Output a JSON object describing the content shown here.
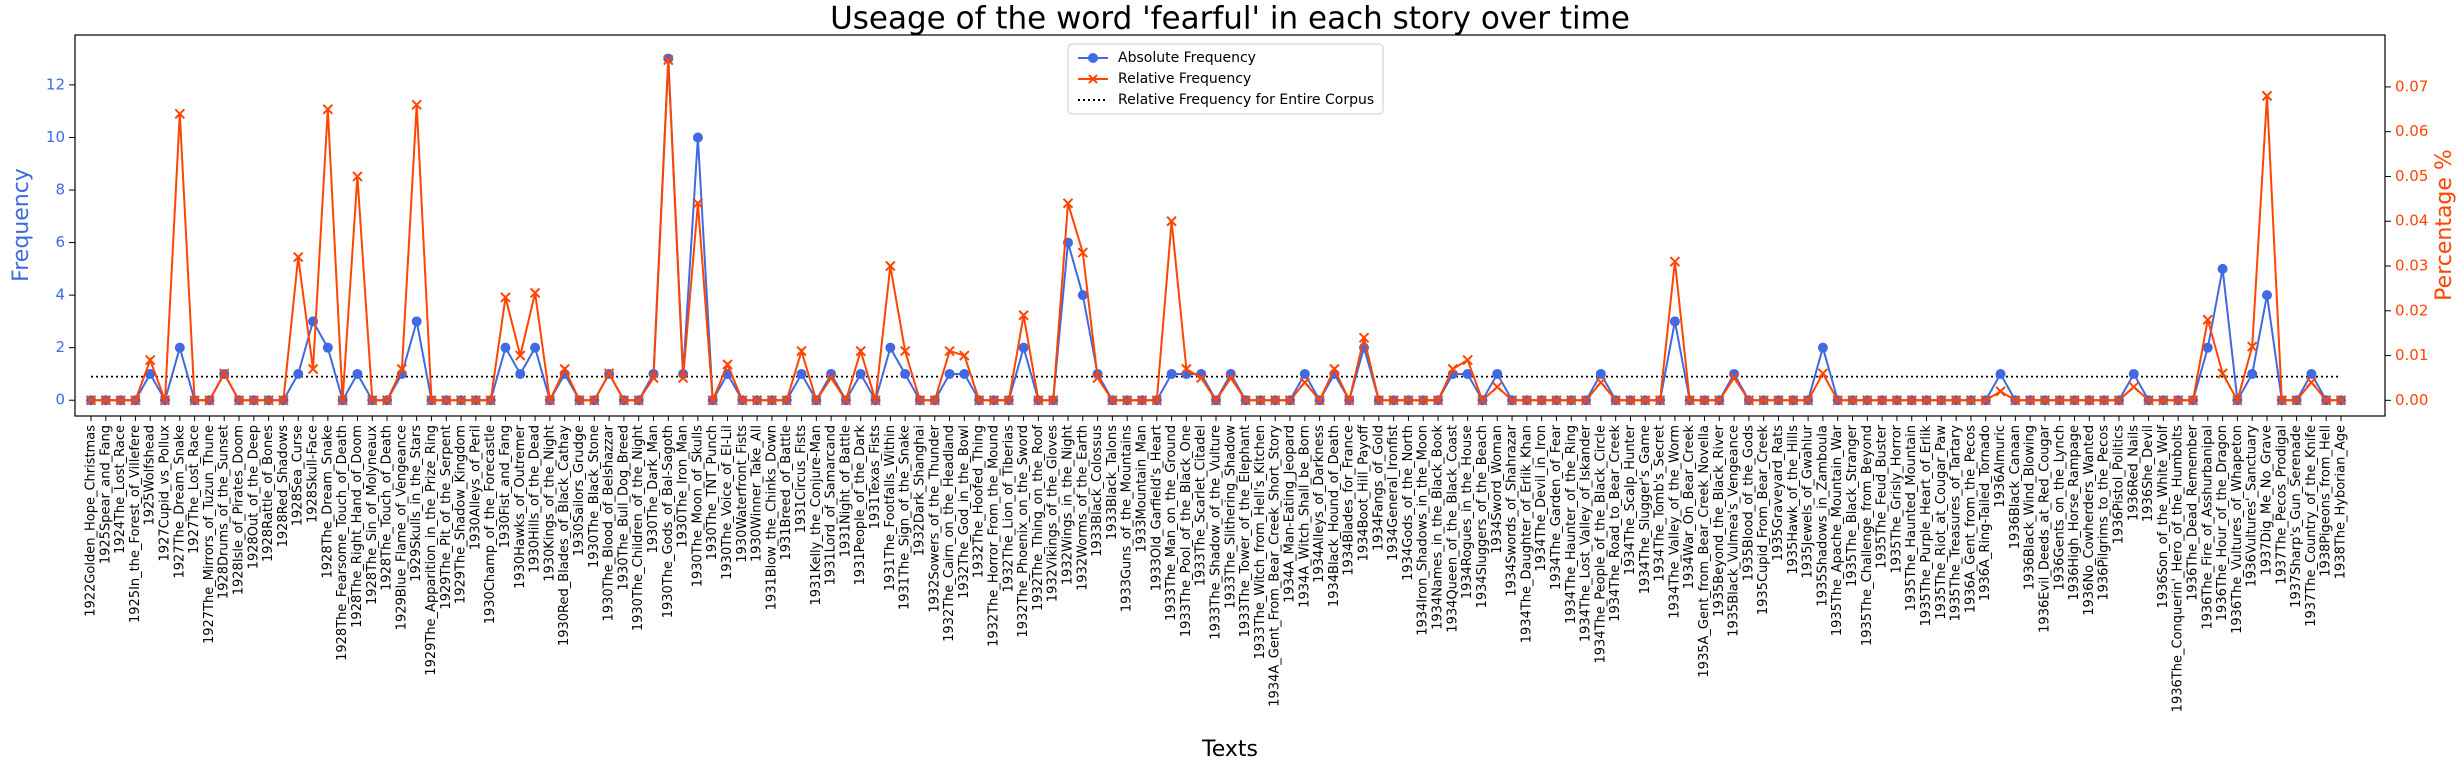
{
  "chart_data": {
    "type": "line",
    "title": "Useage of the word 'fearful' in each story over time",
    "xlabel": "Texts",
    "ylabel": "Frequency",
    "y2label": "Percentage %",
    "categories": [
      "1922Golden_Hope_Christmas",
      "1925Spear_and_Fang",
      "1924The_Lost_Race",
      "1925In_the_Forest_of_Villefere",
      "1925Wolfshead",
      "1927Cupid_vs_Pollux",
      "1927The_Dream_Snake",
      "1927The_Lost_Race",
      "1927The_Mirrors_of_Tuzun_Thune",
      "1928Drums_of_the_Sunset",
      "1928Isle_of_Pirates_Doom",
      "1928Out_of_the_Deep",
      "1928Rattle_of_Bones",
      "1928Red_Shadows",
      "1928Sea_Curse",
      "1928Skull-Face",
      "1928The_Dream_Snake",
      "1928The_Fearsome_Touch_of_Death",
      "1928The_Right_Hand_of_Doom",
      "1928The_Sin_of_Molyneaux",
      "1928The_Touch_of_Death",
      "1929Blue_Flame_of_Vengeance",
      "1929Skulls_in_the_Stars",
      "1929The_Apparition_in_the_Prize_Ring",
      "1929The_Pit_of_the_Serpent",
      "1929The_Shadow_Kingdom",
      "1930Alleys_of_Peril",
      "1930Champ_of_the_Forecastle",
      "1930Fist_and_Fang",
      "1930Hawks_of_Outremer",
      "1930Hills_of_the_Dead",
      "1930Kings_of_the_Night",
      "1930Red_Blades_of_Black_Cathay",
      "1930Sailors_Grudge",
      "1930The_Black_Stone",
      "1930The_Blood_of_Belshazzar",
      "1930The_Bull_Dog_Breed",
      "1930The_Children_of_the_Night",
      "1930The_Dark_Man",
      "1930The_Gods_of_Bal-Sagoth",
      "1930The_Iron_Man",
      "1930The_Moon_of_Skulls",
      "1930The_TNT_Punch",
      "1930The_Voice_of_El-Lil",
      "1930Waterfront_Fists",
      "1930Winner_Take_All",
      "1931Blow_the_Chinks_Down",
      "1931Breed_of_Battle",
      "1931Circus_Fists",
      "1931Kelly_the_Conjure-Man",
      "1931Lord_of_Samarcand",
      "1931Night_of_Battle",
      "1931People_of_the_Dark",
      "1931Texas_Fists",
      "1931The_Footfalls_Within",
      "1931The_Sign_of_the_Snake",
      "1932Dark_Shanghai",
      "1932Sowers_of_the_Thunder",
      "1932The_Cairn_on_the_Headland",
      "1932The_God_in_the_Bowl",
      "1932The_Hoofed_Thing",
      "1932The_Horror_From_the_Mound",
      "1932The_Lion_of_Tiberias",
      "1932The_Phoenix_on_the_Sword",
      "1932The_Thing_on_the_Roof",
      "1932Vikings_of_the_Gloves",
      "1932Wings_in_the_Night",
      "1932Worms_of_the_Earth",
      "1933Black_Colossus",
      "1933Black_Talons",
      "1933Guns_of_the_Mountains",
      "1933Mountain_Man",
      "1933Old_Garfield's_Heart",
      "1933The_Man_on_the_Ground",
      "1933The_Pool_of_the_Black_One",
      "1933The_Scarlet_Citadel",
      "1933The_Shadow_of_the_Vulture",
      "1933The_Slithering_Shadow",
      "1933The_Tower_of_the_Elephant",
      "1933The_Witch_from_Hell's_Kitchen",
      "1934A_Gent_From_Bear_Creek_Short_Story",
      "1934A_Man-Eating_Jeopard",
      "1934A_Witch_Shall_be_Born",
      "1934Alleys_of_Darkness",
      "1934Black_Hound_of_Death",
      "1934Blades_for_France",
      "1934Boot_Hill_Payoff",
      "1934Fangs_of_Gold",
      "1934General_Ironfist",
      "1934Gods_of_the_North",
      "1934Iron_Shadows_in_the_Moon",
      "1934Names_in_the_Black_Book",
      "1934Queen_of_the_Black_Coast",
      "1934Rogues_in_the_House",
      "1934Sluggers_of_the_Beach",
      "1934Sword_Woman",
      "1934Swords_of_Shahrazar",
      "1934The_Daughter_of_Erlik_Khan",
      "1934The_Devil_in_Iron",
      "1934The_Garden_of_Fear",
      "1934The_Haunter_of_the_Ring",
      "1934The_Lost_Valley_of_Iskander",
      "1934The_People_of_the_Black_Circle",
      "1934The_Road_to_Bear_Creek",
      "1934The_Scalp_Hunter",
      "1934The_Slugger's_Game",
      "1934The_Tomb's_Secret",
      "1934The_Valley_of_the_Worm",
      "1934War_On_Bear_Creek",
      "1935A_Gent_from_Bear_Creek_Novella",
      "1935Beyond_the_Black_River",
      "1935Black_Vulmea's_Vengeance",
      "1935Blood_of_the_Gods",
      "1935Cupid_From_Bear_Creek",
      "1935Graveyard_Rats",
      "1935Hawk_of_the_Hills",
      "1935Jewels_of_Gwahlur",
      "1935Shadows_in_Zamboula",
      "1935The_Apache_Mountain_War",
      "1935The_Black_Stranger",
      "1935The_Challenge_from_Beyond",
      "1935The_Feud_Buster",
      "1935The_Grisly_Horror",
      "1935The_Haunted_Mountain",
      "1935The_Purple_Heart_of_Erlik",
      "1935The_Riot_at_Cougar_Paw",
      "1935The_Treasures_of_Tartary",
      "1936A_Gent_from_the_Pecos",
      "1936A_Ring-Tailed_Tornado",
      "1936Almuric",
      "1936Black_Canaan",
      "1936Black_Wind_Blowing",
      "1936Evil_Deeds_at_Red_Cougar",
      "1936Gents_on_the_Lynch",
      "1936High_Horse_Rampage",
      "1936No_Cowherders_Wanted",
      "1936Pilgrims_to_the_Pecos",
      "1936Pistol_Politics",
      "1936Red_Nails",
      "1936She_Devil",
      "1936Son_of_the_White_Wolf",
      "1936The_Conquerin'_Hero_of_the_Humbolts",
      "1936The_Dead_Remember",
      "1936The_Fire_of_Asshurbanipal",
      "1936The_Hour_of_the_Dragon",
      "1936The_Vultures_of_Whapeton",
      "1936Vultures'_Sanctuary",
      "1937Dig_Me_No_Grave",
      "1937The_Pecos_Prodigal",
      "1937Sharp's_Gun_Serenade",
      "1937The_Country_of_the_Knife",
      "1938Pigeons_from_Hell",
      "1938The_Hyborian_Age"
    ],
    "series": [
      {
        "name": "Absolute Frequency",
        "color": "#4169e1",
        "marker": "o",
        "axis": "y",
        "values": [
          0,
          0,
          0,
          0,
          1,
          0,
          2,
          0,
          0,
          1,
          0,
          0,
          0,
          0,
          1,
          3,
          2,
          0,
          1,
          0,
          0,
          1,
          3,
          0,
          0,
          0,
          0,
          0,
          2,
          1,
          2,
          0,
          1,
          0,
          0,
          1,
          0,
          0,
          1,
          13,
          1,
          10,
          0,
          1,
          0,
          0,
          0,
          0,
          1,
          0,
          1,
          0,
          1,
          0,
          2,
          1,
          0,
          0,
          1,
          1,
          0,
          0,
          0,
          2,
          0,
          0,
          6,
          4,
          1,
          0,
          0,
          0,
          0,
          1,
          1,
          1,
          0,
          1,
          0,
          0,
          0,
          0,
          1,
          0,
          1,
          0,
          2,
          0,
          0,
          0,
          0,
          0,
          1,
          1,
          0,
          1,
          0,
          0,
          0,
          0,
          0,
          0,
          1,
          0,
          0,
          0,
          0,
          3,
          0,
          0,
          0,
          1,
          0,
          0,
          0,
          0,
          0,
          2,
          0,
          0,
          0,
          0,
          0,
          0,
          0,
          0,
          0,
          0,
          0,
          1,
          0,
          0,
          0,
          0,
          0,
          0,
          0,
          0,
          1,
          0,
          0,
          0,
          0,
          2,
          5,
          0,
          1,
          4,
          0,
          0,
          1,
          0,
          0
        ]
      },
      {
        "name": "Relative Frequency",
        "color": "#ff4500",
        "marker": "x",
        "axis": "y2",
        "values": [
          0,
          0,
          0,
          0,
          0.009,
          0,
          0.064,
          0,
          0,
          0.006,
          0,
          0,
          0,
          0,
          0.032,
          0.007,
          0.065,
          0,
          0.05,
          0,
          0,
          0.007,
          0.066,
          0,
          0,
          0,
          0,
          0,
          0.023,
          0.01,
          0.024,
          0,
          0.007,
          0,
          0,
          0.006,
          0,
          0,
          0.005,
          0.076,
          0.005,
          0.044,
          0,
          0.008,
          0,
          0,
          0,
          0,
          0.011,
          0,
          0.005,
          0,
          0.011,
          0,
          0.03,
          0.011,
          0,
          0,
          0.011,
          0.01,
          0,
          0,
          0,
          0.019,
          0,
          0,
          0.044,
          0.033,
          0.005,
          0,
          0,
          0,
          0,
          0.04,
          0.007,
          0.005,
          0,
          0.005,
          0,
          0,
          0,
          0,
          0.004,
          0,
          0.007,
          0,
          0.014,
          0,
          0,
          0,
          0,
          0,
          0.007,
          0.009,
          0,
          0.003,
          0,
          0,
          0,
          0,
          0,
          0,
          0.004,
          0,
          0,
          0,
          0,
          0.031,
          0,
          0,
          0,
          0.005,
          0,
          0,
          0,
          0,
          0,
          0.006,
          0,
          0,
          0,
          0,
          0,
          0,
          0,
          0,
          0,
          0,
          0,
          0.002,
          0,
          0,
          0,
          0,
          0,
          0,
          0,
          0,
          0.003,
          0,
          0,
          0,
          0,
          0.018,
          0.006,
          0,
          0.012,
          0.068,
          0,
          0,
          0.004,
          0,
          0
        ]
      }
    ],
    "reference_lines": [
      {
        "name": "Relative Frequency for Entire Corpus",
        "value": 0.0053,
        "axis": "y2",
        "color": "#000000",
        "style": "dotted"
      }
    ],
    "ylim": [
      -0.6,
      13.9
    ],
    "yticks": [
      0,
      2,
      4,
      6,
      8,
      10,
      12
    ],
    "y2lim": [
      -0.0035,
      0.0816
    ],
    "y2ticks": [
      {
        "value": 0,
        "label": "0.00"
      },
      {
        "value": 0.01,
        "label": "0.01"
      },
      {
        "value": 0.02,
        "label": "0.02"
      },
      {
        "value": 0.03,
        "label": "0.03"
      },
      {
        "value": 0.04,
        "label": "0.04"
      },
      {
        "value": 0.05,
        "label": "0.05"
      },
      {
        "value": 0.06,
        "label": "0.06"
      },
      {
        "value": 0.07,
        "label": "0.07"
      }
    ],
    "grid": false,
    "legend": "upper center"
  }
}
